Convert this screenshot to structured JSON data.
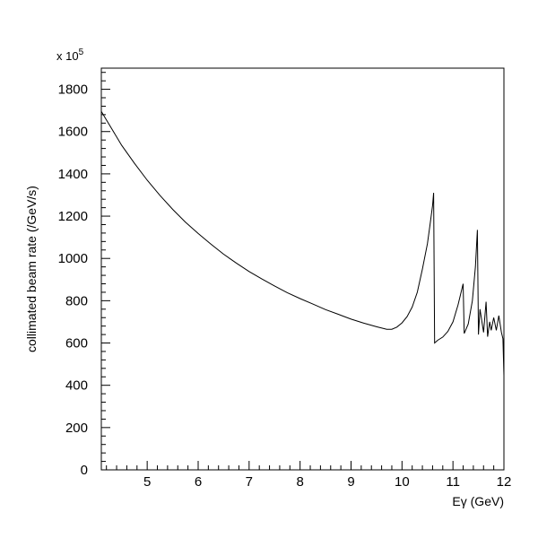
{
  "chart_data": {
    "type": "line",
    "title": "",
    "xlabel": "Eγ (GeV)",
    "ylabel": "collimated beam rate (/GeV/s)",
    "y_scale_label": "x 10",
    "y_scale_exponent": "5",
    "xlim": [
      4.1,
      12.0
    ],
    "ylim": [
      0,
      1900
    ],
    "x_ticks": [
      "5",
      "6",
      "7",
      "8",
      "9",
      "10",
      "11",
      "12"
    ],
    "y_ticks": [
      "0",
      "200",
      "400",
      "600",
      "800",
      "1000",
      "1200",
      "1400",
      "1600",
      "1800"
    ],
    "grid": false,
    "line_color": "#000000",
    "series": [
      {
        "x": [
          4.1,
          4.3,
          4.5,
          4.75,
          5.0,
          5.25,
          5.5,
          5.75,
          6.0,
          6.25,
          6.5,
          6.75,
          7.0,
          7.25,
          7.5,
          7.75,
          8.0,
          8.25,
          8.5,
          8.75,
          9.0,
          9.25,
          9.5,
          9.7,
          9.8,
          9.9,
          10.0,
          10.1,
          10.2,
          10.3,
          10.4,
          10.5,
          10.55,
          10.6,
          10.62,
          10.64,
          10.7,
          10.8,
          10.9,
          11.0,
          11.1,
          11.2,
          11.22,
          11.3,
          11.38,
          11.44,
          11.48,
          11.5,
          11.53,
          11.6,
          11.65,
          11.68,
          11.72,
          11.75,
          11.8,
          11.85,
          11.9,
          11.95,
          11.98,
          12.0
        ],
        "y": [
          1695,
          1615,
          1535,
          1450,
          1370,
          1298,
          1232,
          1172,
          1118,
          1068,
          1020,
          978,
          938,
          903,
          870,
          838,
          810,
          784,
          758,
          736,
          713,
          694,
          677,
          665,
          665,
          675,
          695,
          725,
          770,
          840,
          950,
          1070,
          1160,
          1250,
          1310,
          600,
          613,
          628,
          655,
          700,
          780,
          880,
          645,
          690,
          800,
          960,
          1135,
          640,
          760,
          650,
          795,
          630,
          700,
          660,
          720,
          660,
          730,
          650,
          620,
          445
        ]
      }
    ]
  }
}
